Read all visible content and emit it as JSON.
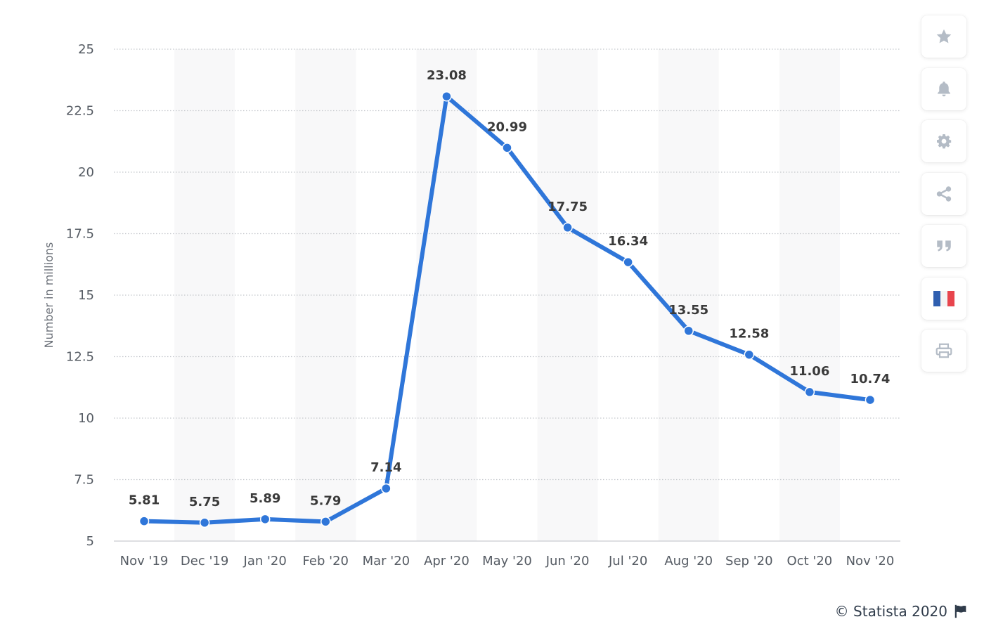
{
  "chart_data": {
    "type": "line",
    "categories": [
      "Nov '19",
      "Dec '19",
      "Jan '20",
      "Feb '20",
      "Mar '20",
      "Apr '20",
      "May '20",
      "Jun '20",
      "Jul '20",
      "Aug '20",
      "Sep '20",
      "Oct '20",
      "Nov '20"
    ],
    "series": [
      {
        "values": [
          5.81,
          5.75,
          5.89,
          5.79,
          7.14,
          23.08,
          20.99,
          17.75,
          16.34,
          13.55,
          12.58,
          11.06,
          10.74
        ]
      }
    ],
    "data_labels": [
      "5.81",
      "5.75",
      "5.89",
      "5.79",
      "7.14",
      "23.08",
      "20.99",
      "17.75",
      "16.34",
      "13.55",
      "12.58",
      "11.06",
      "10.74"
    ],
    "ylabel": "Number in millions",
    "xlabel": "",
    "ylim": [
      5,
      25
    ],
    "yticks": [
      5,
      7.5,
      10,
      12.5,
      15,
      17.5,
      20,
      22.5,
      25
    ],
    "ytick_labels": [
      "5",
      "7.5",
      "10",
      "12.5",
      "15",
      "17.5",
      "20",
      "22.5",
      "25"
    ],
    "grid": true,
    "line_color": "#2f76d9"
  },
  "toolbar": {
    "buttons": [
      {
        "name": "favorite-button",
        "icon": "star-icon"
      },
      {
        "name": "notification-button",
        "icon": "bell-icon"
      },
      {
        "name": "settings-button",
        "icon": "gear-icon"
      },
      {
        "name": "share-button",
        "icon": "share-icon"
      },
      {
        "name": "cite-button",
        "icon": "quote-icon"
      },
      {
        "name": "language-button",
        "icon": "french-flag-icon"
      },
      {
        "name": "print-button",
        "icon": "printer-icon"
      }
    ],
    "icon_color": "#b4bcc6"
  },
  "footer": {
    "credit": "© Statista 2020",
    "flag_icon": "flag-icon"
  }
}
